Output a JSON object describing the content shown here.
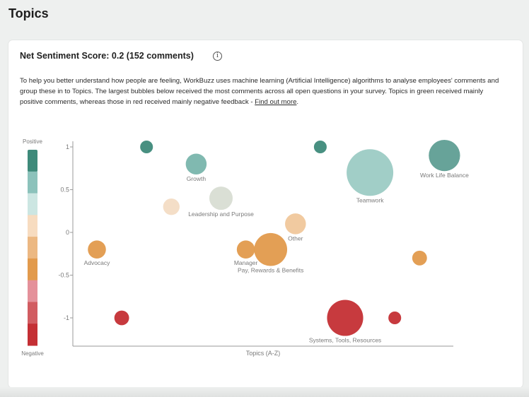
{
  "page": {
    "title": "Topics"
  },
  "card": {
    "heading": "Net Sentiment Score: 0.2 (152 comments)",
    "info_icon": "info-icon",
    "description": "To help you better understand how people are feeling, WorkBuzz uses machine learning (Artificial Intelligence) algorithms to analyse employees' comments and group these in to Topics. The largest bubbles below received the most comments across all open questions in your survey. Topics in green received mainly positive comments, whereas those in red received mainly negative feedback - ",
    "link_text": "Find out more",
    "link_suffix": "."
  },
  "legend": {
    "top_label": "Positive",
    "bottom_label": "Negative",
    "colors": [
      "#3e8a7a",
      "#8cc2bb",
      "#cce6e2",
      "#f7dcc0",
      "#ecb882",
      "#e29a4c",
      "#e4919a",
      "#d15c61",
      "#c42f34"
    ]
  },
  "chart_data": {
    "type": "scatter",
    "subtype": "bubble",
    "xlabel": "Topics (A-Z)",
    "ylabel": "",
    "ylim": [
      -1.3,
      1.05
    ],
    "yticks": [
      1,
      0.5,
      0,
      -0.5,
      -1
    ],
    "ytick_labels": [
      "1",
      "0.5",
      "0",
      "-0.5",
      "-1"
    ],
    "x_categories_count": 16,
    "points": [
      {
        "x": 1,
        "y": -0.2,
        "size": 3,
        "label": "Advocacy",
        "color": "#e29a4c"
      },
      {
        "x": 2,
        "y": -1.0,
        "size": 2,
        "label": "",
        "color": "#c42f34"
      },
      {
        "x": 3,
        "y": 1.0,
        "size": 1.5,
        "label": "",
        "color": "#3e8a7a"
      },
      {
        "x": 4,
        "y": 0.3,
        "size": 2.5,
        "label": "",
        "color": "#f3dcc4"
      },
      {
        "x": 5,
        "y": 0.8,
        "size": 4,
        "label": "Growth",
        "color": "#79b5ac"
      },
      {
        "x": 6,
        "y": 0.4,
        "size": 5,
        "label": "Leadership and Purpose",
        "color": "#d8ddd3"
      },
      {
        "x": 7,
        "y": -0.2,
        "size": 3,
        "label": "Manager",
        "color": "#e29a4c"
      },
      {
        "x": 8,
        "y": -0.2,
        "size": 10,
        "label": "Pay, Rewards & Benefits",
        "color": "#e29a4c"
      },
      {
        "x": 9,
        "y": 0.1,
        "size": 4,
        "label": "Other",
        "color": "#f0c79b"
      },
      {
        "x": 10,
        "y": 1.0,
        "size": 1.5,
        "label": "",
        "color": "#3e8a7a"
      },
      {
        "x": 11,
        "y": -1.0,
        "size": 12,
        "label": "Systems, Tools, Resources",
        "color": "#c42f34"
      },
      {
        "x": 12,
        "y": 0.7,
        "size": 20,
        "label": "Teamwork",
        "color": "#9ccbc4"
      },
      {
        "x": 13,
        "y": -1.0,
        "size": 1.5,
        "label": "",
        "color": "#c42f34"
      },
      {
        "x": 14,
        "y": -0.3,
        "size": 2,
        "label": "",
        "color": "#e29a4c"
      },
      {
        "x": 15,
        "y": 0.9,
        "size": 9,
        "label": "Work Life Balance",
        "color": "#5f9e93"
      }
    ]
  }
}
